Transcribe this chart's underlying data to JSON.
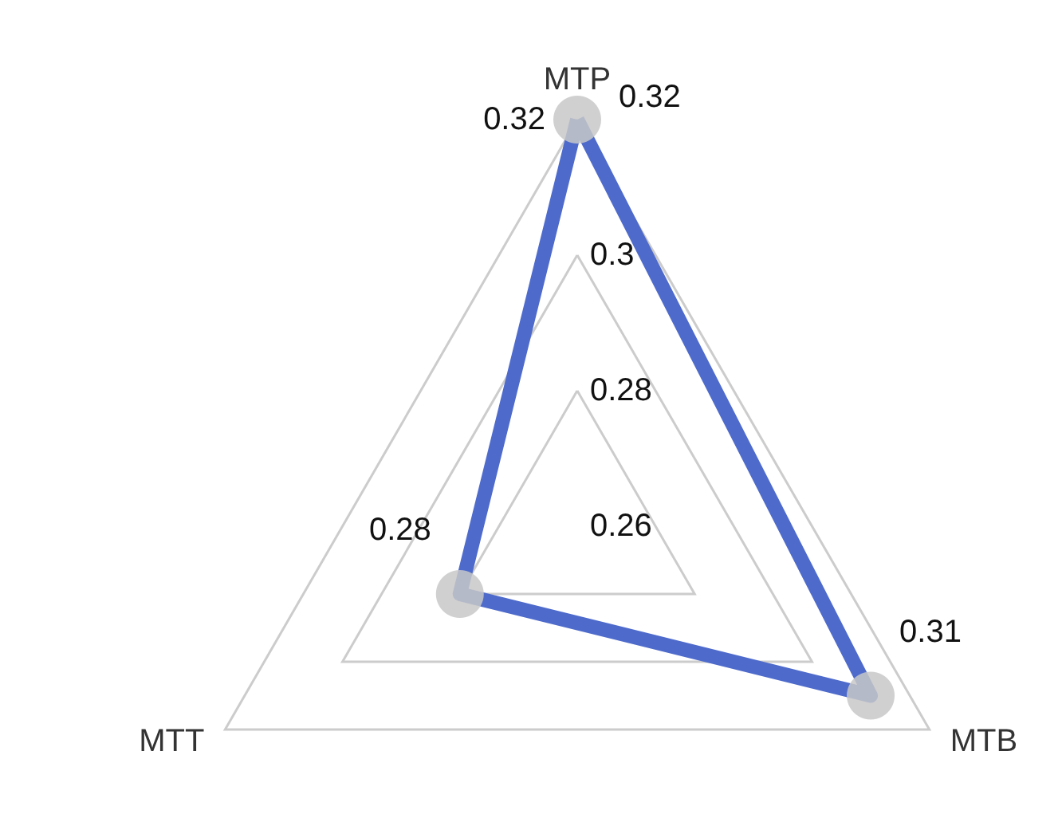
{
  "chart_data": {
    "type": "radar",
    "categories": [
      "MTP",
      "MTB",
      "MTT"
    ],
    "series": [
      {
        "color": "#4e6bcc",
        "values": [
          0.32,
          0.31,
          0.28
        ]
      }
    ],
    "ylim": [
      0.26,
      0.32
    ],
    "yticks": [
      0.26,
      0.28,
      0.3,
      0.32
    ],
    "data_labels": true,
    "marker": "circle",
    "line_style": "solid",
    "grid": true
  }
}
